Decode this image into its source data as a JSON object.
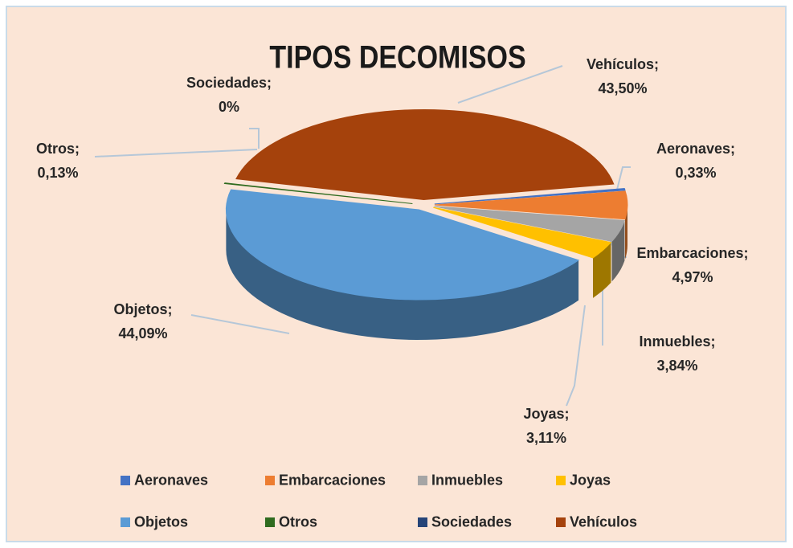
{
  "chart_data": {
    "type": "pie3d",
    "title": "TIPOS DECOMISOS",
    "categories": [
      "Aeronaves",
      "Embarcaciones",
      "Inmuebles",
      "Joyas",
      "Objetos",
      "Otros",
      "Sociedades",
      "Vehículos"
    ],
    "values": [
      0.33,
      4.97,
      3.84,
      3.11,
      44.09,
      0.13,
      0,
      43.5
    ],
    "value_labels": [
      "Aeronaves;\n0,33%",
      "Embarcaciones;\n4,97%",
      "Inmuebles;\n3,84%",
      "Joyas;\n3,11%",
      "Objetos;\n44,09%",
      "Otros;\n0,13%",
      "Sociedades;\n0%",
      "Vehículos;\n43,50%"
    ],
    "colors": [
      "#4472c4",
      "#ed7d31",
      "#a5a5a5",
      "#ffc000",
      "#5b9bd5",
      "#2f6b1f",
      "#264478",
      "#a5420c"
    ],
    "legend": "bottom"
  }
}
